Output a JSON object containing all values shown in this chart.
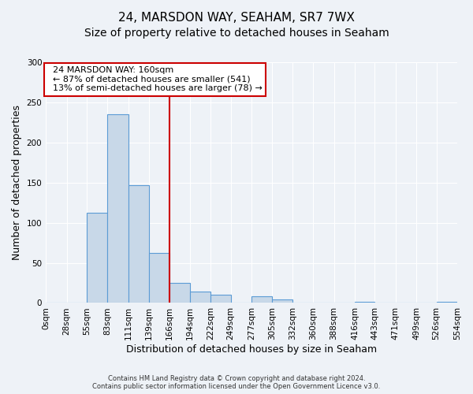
{
  "title": "24, MARSDON WAY, SEAHAM, SR7 7WX",
  "subtitle": "Size of property relative to detached houses in Seaham",
  "xlabel": "Distribution of detached houses by size in Seaham",
  "ylabel": "Number of detached properties",
  "bin_edges": [
    0,
    28,
    55,
    83,
    111,
    139,
    166,
    194,
    222,
    249,
    277,
    305,
    332,
    360,
    388,
    416,
    443,
    471,
    499,
    526,
    554
  ],
  "bin_labels": [
    "0sqm",
    "28sqm",
    "55sqm",
    "83sqm",
    "111sqm",
    "139sqm",
    "166sqm",
    "194sqm",
    "222sqm",
    "249sqm",
    "277sqm",
    "305sqm",
    "332sqm",
    "360sqm",
    "388sqm",
    "416sqm",
    "443sqm",
    "471sqm",
    "499sqm",
    "526sqm",
    "554sqm"
  ],
  "bar_heights": [
    0,
    0,
    112,
    235,
    147,
    62,
    25,
    14,
    10,
    0,
    8,
    4,
    0,
    0,
    0,
    1,
    0,
    0,
    0,
    1
  ],
  "bar_color": "#c8d8e8",
  "bar_edge_color": "#5b9bd5",
  "property_line_x": 166,
  "property_line_color": "#cc0000",
  "annotation_title": "24 MARSDON WAY: 160sqm",
  "annotation_line1": "← 87% of detached houses are smaller (541)",
  "annotation_line2": "13% of semi-detached houses are larger (78) →",
  "annotation_box_color": "#ffffff",
  "annotation_box_edge_color": "#cc0000",
  "ylim": [
    0,
    300
  ],
  "yticks": [
    0,
    50,
    100,
    150,
    200,
    250,
    300
  ],
  "footer_line1": "Contains HM Land Registry data © Crown copyright and database right 2024.",
  "footer_line2": "Contains public sector information licensed under the Open Government Licence v3.0.",
  "bg_color": "#eef2f7",
  "title_fontsize": 11,
  "subtitle_fontsize": 10,
  "axis_label_fontsize": 9,
  "tick_fontsize": 7.5,
  "annotation_fontsize": 8
}
